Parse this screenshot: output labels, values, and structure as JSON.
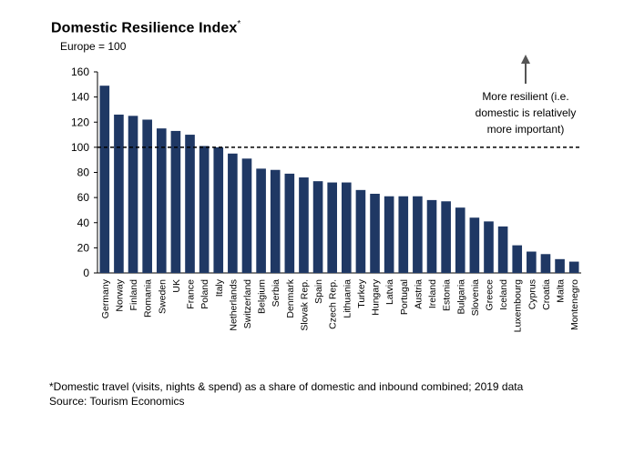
{
  "chart_data": {
    "type": "bar",
    "title": "Domestic Resilience Index",
    "title_mark": "*",
    "subtitle": "Europe = 100",
    "categories": [
      "Germany",
      "Norway",
      "Finland",
      "Romania",
      "Sweden",
      "UK",
      "France",
      "Poland",
      "Italy",
      "Netherlands",
      "Switzerland",
      "Belgium",
      "Serbia",
      "Denmark",
      "Slovak Rep.",
      "Spain",
      "Czech Rep.",
      "Lithuania",
      "Turkey",
      "Hungary",
      "Latvia",
      "Portugal",
      "Austria",
      "Ireland",
      "Estonia",
      "Bulgaria",
      "Slovenia",
      "Greece",
      "Iceland",
      "Luxembourg",
      "Cyprus",
      "Croatia",
      "Malta",
      "Montenegro"
    ],
    "values": [
      149,
      126,
      125,
      122,
      115,
      113,
      110,
      101,
      100,
      95,
      91,
      83,
      82,
      79,
      76,
      73,
      72,
      72,
      66,
      63,
      61,
      61,
      61,
      58,
      57,
      52,
      44,
      41,
      37,
      22,
      17,
      15,
      11,
      9
    ],
    "ylim": [
      0,
      160
    ],
    "yticks": [
      "0",
      "20",
      "40",
      "60",
      "80",
      "100",
      "120",
      "140",
      "160"
    ],
    "reference_line": 100,
    "bar_color": "#1f3864",
    "annotation": [
      "More resilient (i.e.",
      "domestic is relatively",
      "more important)"
    ],
    "grid": false,
    "legend": "none"
  },
  "footnote": "*Domestic travel (visits, nights & spend) as a share of domestic and inbound combined; 2019 data",
  "source": "Source: Tourism Economics"
}
